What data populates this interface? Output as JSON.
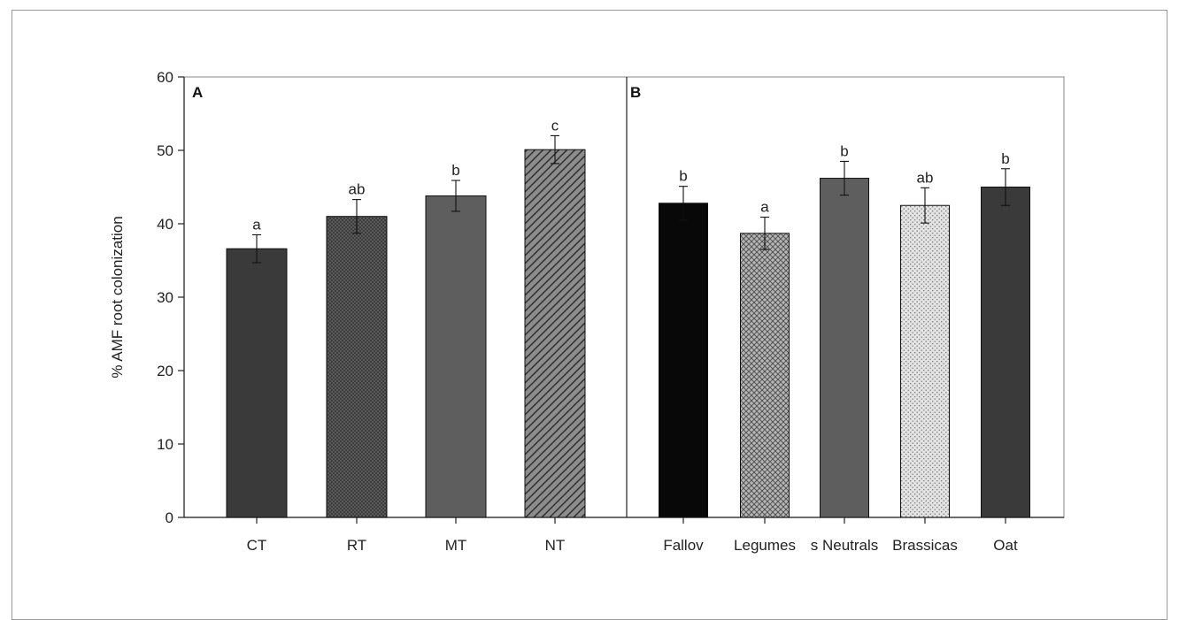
{
  "chart_data": [
    {
      "type": "bar",
      "panel": "A",
      "ylabel": "% AMF root colonization",
      "ylim": [
        0,
        60
      ],
      "yticks": [
        0,
        10,
        20,
        30,
        40,
        50,
        60
      ],
      "categories": [
        "CT",
        "RT",
        "MT",
        "NT"
      ],
      "values": [
        36.6,
        41.0,
        43.8,
        50.1
      ],
      "errors": [
        1.9,
        2.3,
        2.1,
        1.9
      ],
      "significance": [
        "a",
        "ab",
        "b",
        "c"
      ],
      "fills": [
        "solid-dark",
        "dotted-dark",
        "solid-mid",
        "diagonal-hatch"
      ]
    },
    {
      "type": "bar",
      "panel": "B",
      "ylim": [
        0,
        60
      ],
      "categories": [
        "Fallov",
        "Legumes",
        "s Neutrals",
        "Brassicas",
        "Oat"
      ],
      "values": [
        42.8,
        38.7,
        46.2,
        42.5,
        45.0
      ],
      "errors": [
        2.3,
        2.2,
        2.3,
        2.4,
        2.5
      ],
      "significance": [
        "b",
        "a",
        "b",
        "ab",
        "b"
      ],
      "fills": [
        "solid-black",
        "crosshatch",
        "solid-mid",
        "dotted-light",
        "solid-dark"
      ]
    }
  ],
  "colors": {
    "axis": "#222222",
    "frame": "#9a9a9a",
    "dark": "#3a3a3a",
    "mid": "#5e5e5e",
    "black": "#080808"
  }
}
